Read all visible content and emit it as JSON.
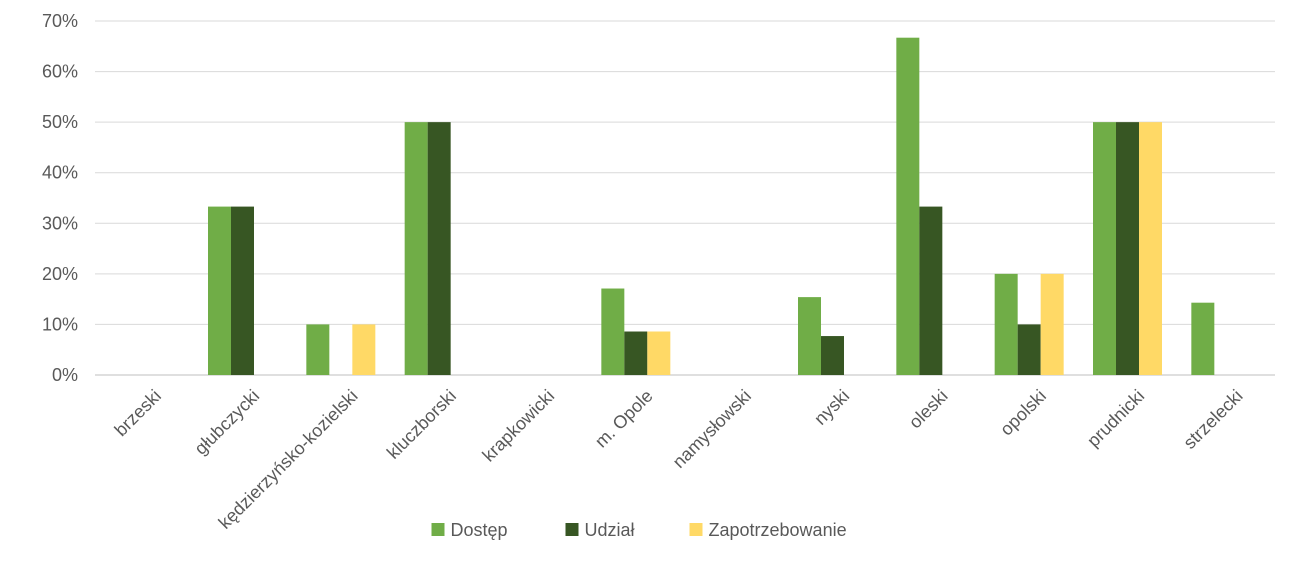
{
  "chart_data": {
    "type": "bar",
    "title": "",
    "xlabel": "",
    "ylabel": "",
    "ylim": [
      0,
      70
    ],
    "y_ticks": [
      "0%",
      "10%",
      "20%",
      "30%",
      "40%",
      "50%",
      "60%",
      "70%"
    ],
    "grid": true,
    "legend_position": "bottom",
    "categories": [
      "brzeski",
      "głubczycki",
      "kędzierzyńsko-kozielski",
      "kluczborski",
      "krapkowicki",
      "m. Opole",
      "namysłowski",
      "nyski",
      "oleski",
      "opolski",
      "prudnicki",
      "strzelecki"
    ],
    "series": [
      {
        "name": "Dostęp",
        "color": "#70AD47",
        "values": [
          0,
          33.3,
          10,
          50,
          0,
          17.1,
          0,
          15.4,
          66.7,
          20,
          50,
          14.3
        ]
      },
      {
        "name": "Udział",
        "color": "#375623",
        "values": [
          0,
          33.3,
          0,
          50,
          0,
          8.6,
          0,
          7.7,
          33.3,
          10,
          50,
          0
        ]
      },
      {
        "name": "Zapotrzebowanie",
        "color": "#FFD966",
        "values": [
          0,
          0,
          10,
          0,
          0,
          8.6,
          0,
          0,
          0,
          20,
          50,
          0
        ]
      }
    ]
  }
}
